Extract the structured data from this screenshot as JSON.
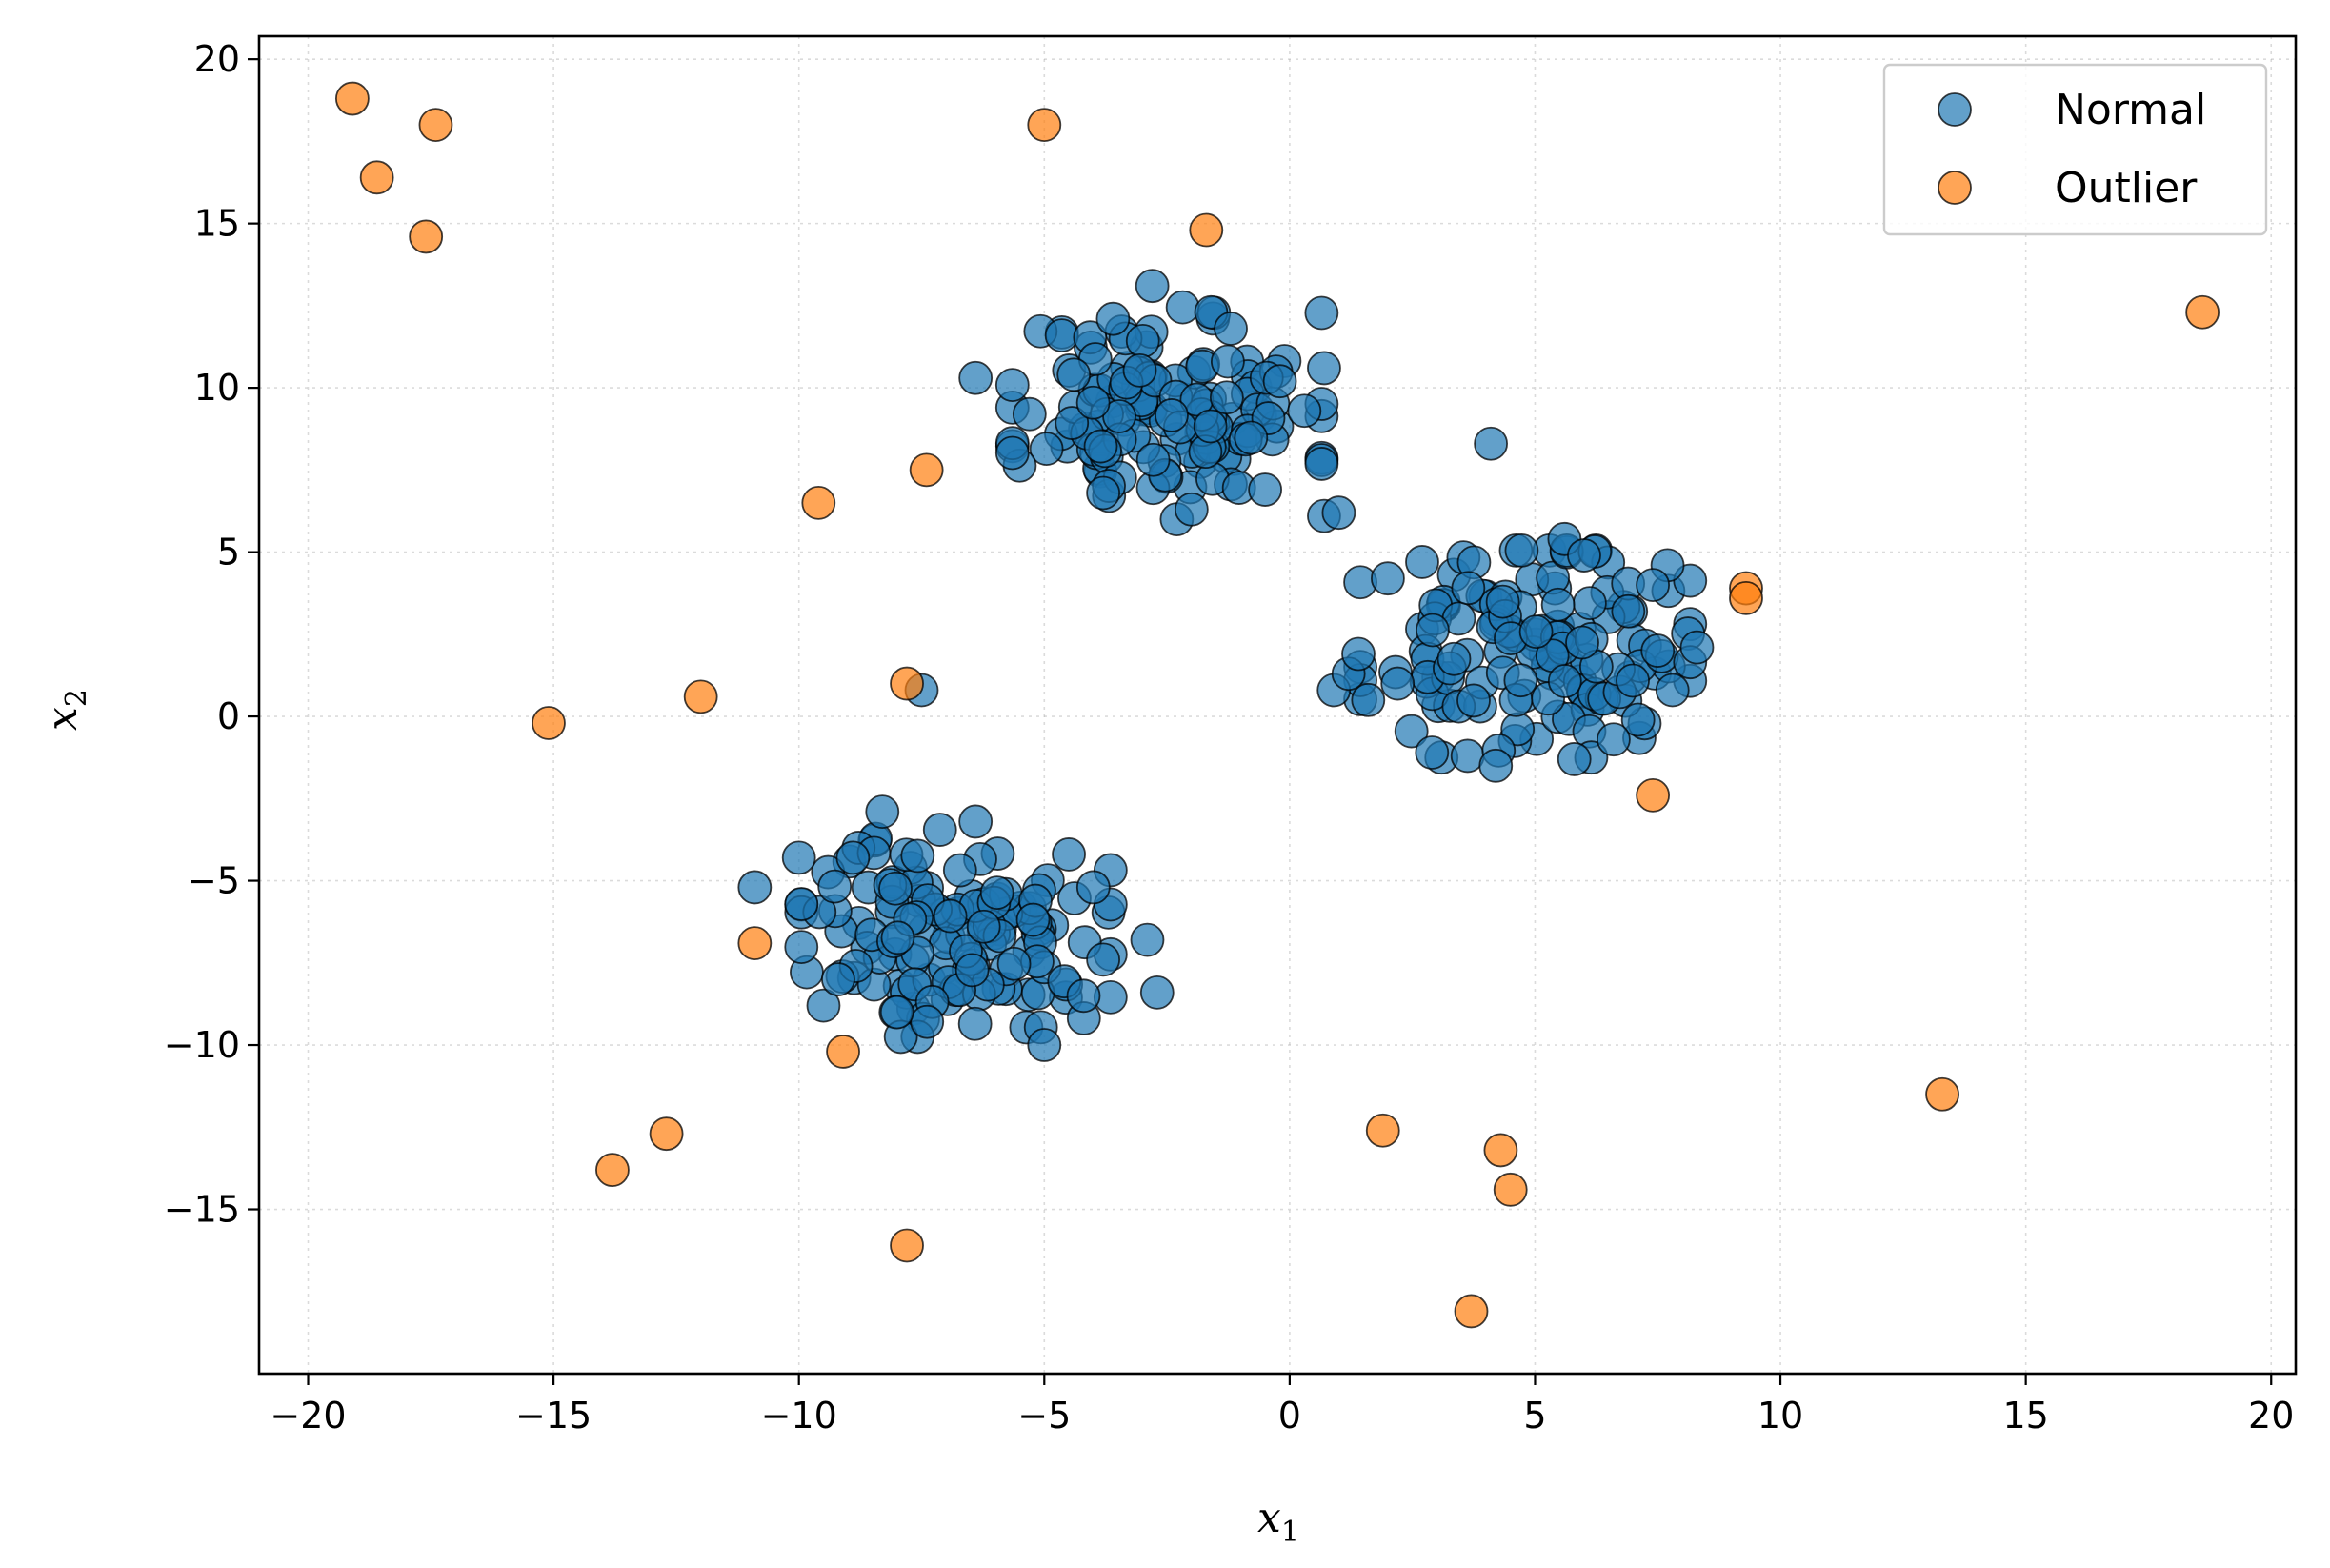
{
  "chart_data": {
    "type": "scatter",
    "xlabel": "x",
    "xlabel_sub": "1",
    "ylabel": "x",
    "ylabel_sub": "2",
    "xlim": [
      -21,
      20.5
    ],
    "ylim": [
      -20,
      20.7
    ],
    "xticks": [
      -20,
      -15,
      -10,
      -5,
      0,
      5,
      10,
      15,
      20
    ],
    "yticks": [
      -15,
      -10,
      -5,
      0,
      5,
      10,
      15,
      20
    ],
    "xtick_labels": [
      "−20",
      "−15",
      "−10",
      "−5",
      "0",
      "5",
      "10",
      "15",
      "20"
    ],
    "ytick_labels": [
      "−15",
      "−10",
      "−5",
      "0",
      "5",
      "10",
      "15",
      "20"
    ],
    "grid": true,
    "legend_position": "top-right",
    "series": [
      {
        "name": "Normal",
        "color": "#1f77b4",
        "clusters": [
          {
            "center": [
              -2.5,
              9.3
            ],
            "spread": [
              1.5,
              1.5
            ],
            "count": 130,
            "seed": 11
          },
          {
            "center": [
              4.8,
              1.9
            ],
            "spread": [
              1.6,
              1.5
            ],
            "count": 130,
            "seed": 23
          },
          {
            "center": [
              -6.8,
              -6.6
            ],
            "spread": [
              1.5,
              1.5
            ],
            "count": 130,
            "seed": 37
          }
        ],
        "points": [
          [
            -6.4,
            10.3
          ],
          [
            -2.8,
            13.1
          ],
          [
            -1.6,
            12.3
          ],
          [
            0.7,
            10.6
          ],
          [
            0.7,
            6.1
          ],
          [
            1.0,
            6.2
          ],
          [
            4.1,
            8.3
          ],
          [
            -7.5,
            0.8
          ],
          [
            -10.9,
            -5.2
          ],
          [
            -10.0,
            -4.3
          ],
          [
            -9.5,
            -8.8
          ],
          [
            -8.3,
            -2.9
          ],
          [
            -5.0,
            -10.0
          ],
          [
            -2.9,
            -6.8
          ],
          [
            -2.7,
            -8.4
          ],
          [
            -6.4,
            -3.2
          ],
          [
            0.9,
            0.8
          ],
          [
            1.6,
            0.5
          ],
          [
            4.2,
            -1.5
          ],
          [
            7.1,
            -0.1
          ],
          [
            7.8,
            0.8
          ],
          [
            8.3,
            2.1
          ],
          [
            7.7,
            4.6
          ],
          [
            5.6,
            5.4
          ],
          [
            2.7,
            4.7
          ],
          [
            2.0,
            4.2
          ],
          [
            5.8,
            -1.3
          ],
          [
            2.9,
            -1.1
          ],
          [
            -3.6,
            12.1
          ],
          [
            -1.2,
            11.8
          ],
          [
            -4.4,
            10.4
          ],
          [
            -0.2,
            10.2
          ],
          [
            0.3,
            9.3
          ],
          [
            -5.3,
            9.2
          ],
          [
            -0.5,
            6.9
          ],
          [
            -2.3,
            6.0
          ],
          [
            -3.8,
            6.8
          ],
          [
            -2.0,
            6.3
          ],
          [
            -8.9,
            -4.3
          ],
          [
            -4.5,
            -4.2
          ],
          [
            -4.0,
            -5.2
          ],
          [
            -9.2,
            -8.0
          ],
          [
            -8.0,
            -9.0
          ],
          [
            -3.8,
            -7.4
          ],
          [
            -4.2,
            -8.5
          ],
          [
            1.2,
            1.3
          ],
          [
            1.4,
            1.9
          ],
          [
            2.2,
            1.0
          ],
          [
            6.6,
            -0.7
          ],
          [
            7.4,
            4.0
          ],
          [
            6.0,
            4.9
          ],
          [
            7.5,
            2.0
          ],
          [
            6.9,
            3.2
          ]
        ]
      },
      {
        "name": "Outlier",
        "color": "#ff7f0e",
        "points": [
          [
            -19.1,
            18.8
          ],
          [
            -18.6,
            16.4
          ],
          [
            -17.4,
            18.0
          ],
          [
            -17.6,
            14.6
          ],
          [
            -5.0,
            18.0
          ],
          [
            -1.7,
            14.8
          ],
          [
            -9.6,
            6.5
          ],
          [
            -7.4,
            7.5
          ],
          [
            -15.1,
            -0.2
          ],
          [
            -12.0,
            0.6
          ],
          [
            -7.8,
            1.0
          ],
          [
            -10.9,
            -6.9
          ],
          [
            -9.1,
            -10.2
          ],
          [
            -12.7,
            -12.7
          ],
          [
            -13.8,
            -13.8
          ],
          [
            -7.8,
            -16.1
          ],
          [
            1.9,
            -12.6
          ],
          [
            4.3,
            -13.2
          ],
          [
            4.5,
            -14.4
          ],
          [
            3.7,
            -18.1
          ],
          [
            7.4,
            -2.4
          ],
          [
            9.3,
            3.9
          ],
          [
            9.3,
            3.6
          ],
          [
            13.3,
            -11.5
          ],
          [
            18.6,
            12.3
          ]
        ]
      }
    ]
  }
}
